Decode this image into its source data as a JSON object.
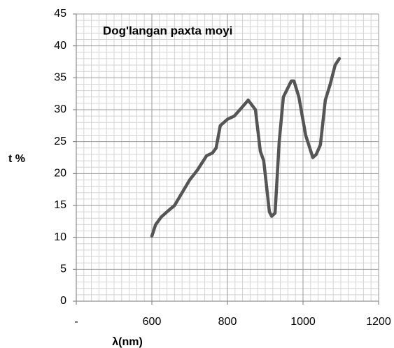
{
  "chart_data": {
    "type": "line",
    "title": "Dog'langan paxta moyi",
    "xlabel": "λ(nm)",
    "ylabel": "t  %",
    "x": [
      600,
      610,
      625,
      640,
      660,
      680,
      700,
      720,
      745,
      760,
      770,
      781,
      800,
      818,
      833,
      855,
      874,
      887,
      896,
      911,
      917,
      926,
      937,
      948,
      969,
      976,
      989,
      1007,
      1026,
      1035,
      1046,
      1059,
      1072,
      1085,
      1096
    ],
    "series": [
      {
        "name": "Dog'langan paxta moyi",
        "color": "#555555",
        "values": [
          10.2,
          12,
          13.2,
          14,
          15,
          17,
          19,
          20.5,
          22.8,
          23.2,
          24,
          27.5,
          28.5,
          29,
          30,
          31.5,
          30,
          23.5,
          22,
          14,
          13.3,
          13.8,
          25,
          32,
          34.5,
          34.5,
          32,
          26,
          22.5,
          23,
          24.5,
          31.5,
          34,
          37,
          38
        ]
      }
    ],
    "xlim": [
      400,
      1200
    ],
    "xticks": [
      {
        "value": 400,
        "label": "-"
      },
      600,
      800,
      1000,
      1200
    ],
    "ylim": [
      0,
      45
    ],
    "yticks": [
      0,
      5,
      10,
      15,
      20,
      25,
      30,
      35,
      40,
      45
    ],
    "grid": true
  }
}
